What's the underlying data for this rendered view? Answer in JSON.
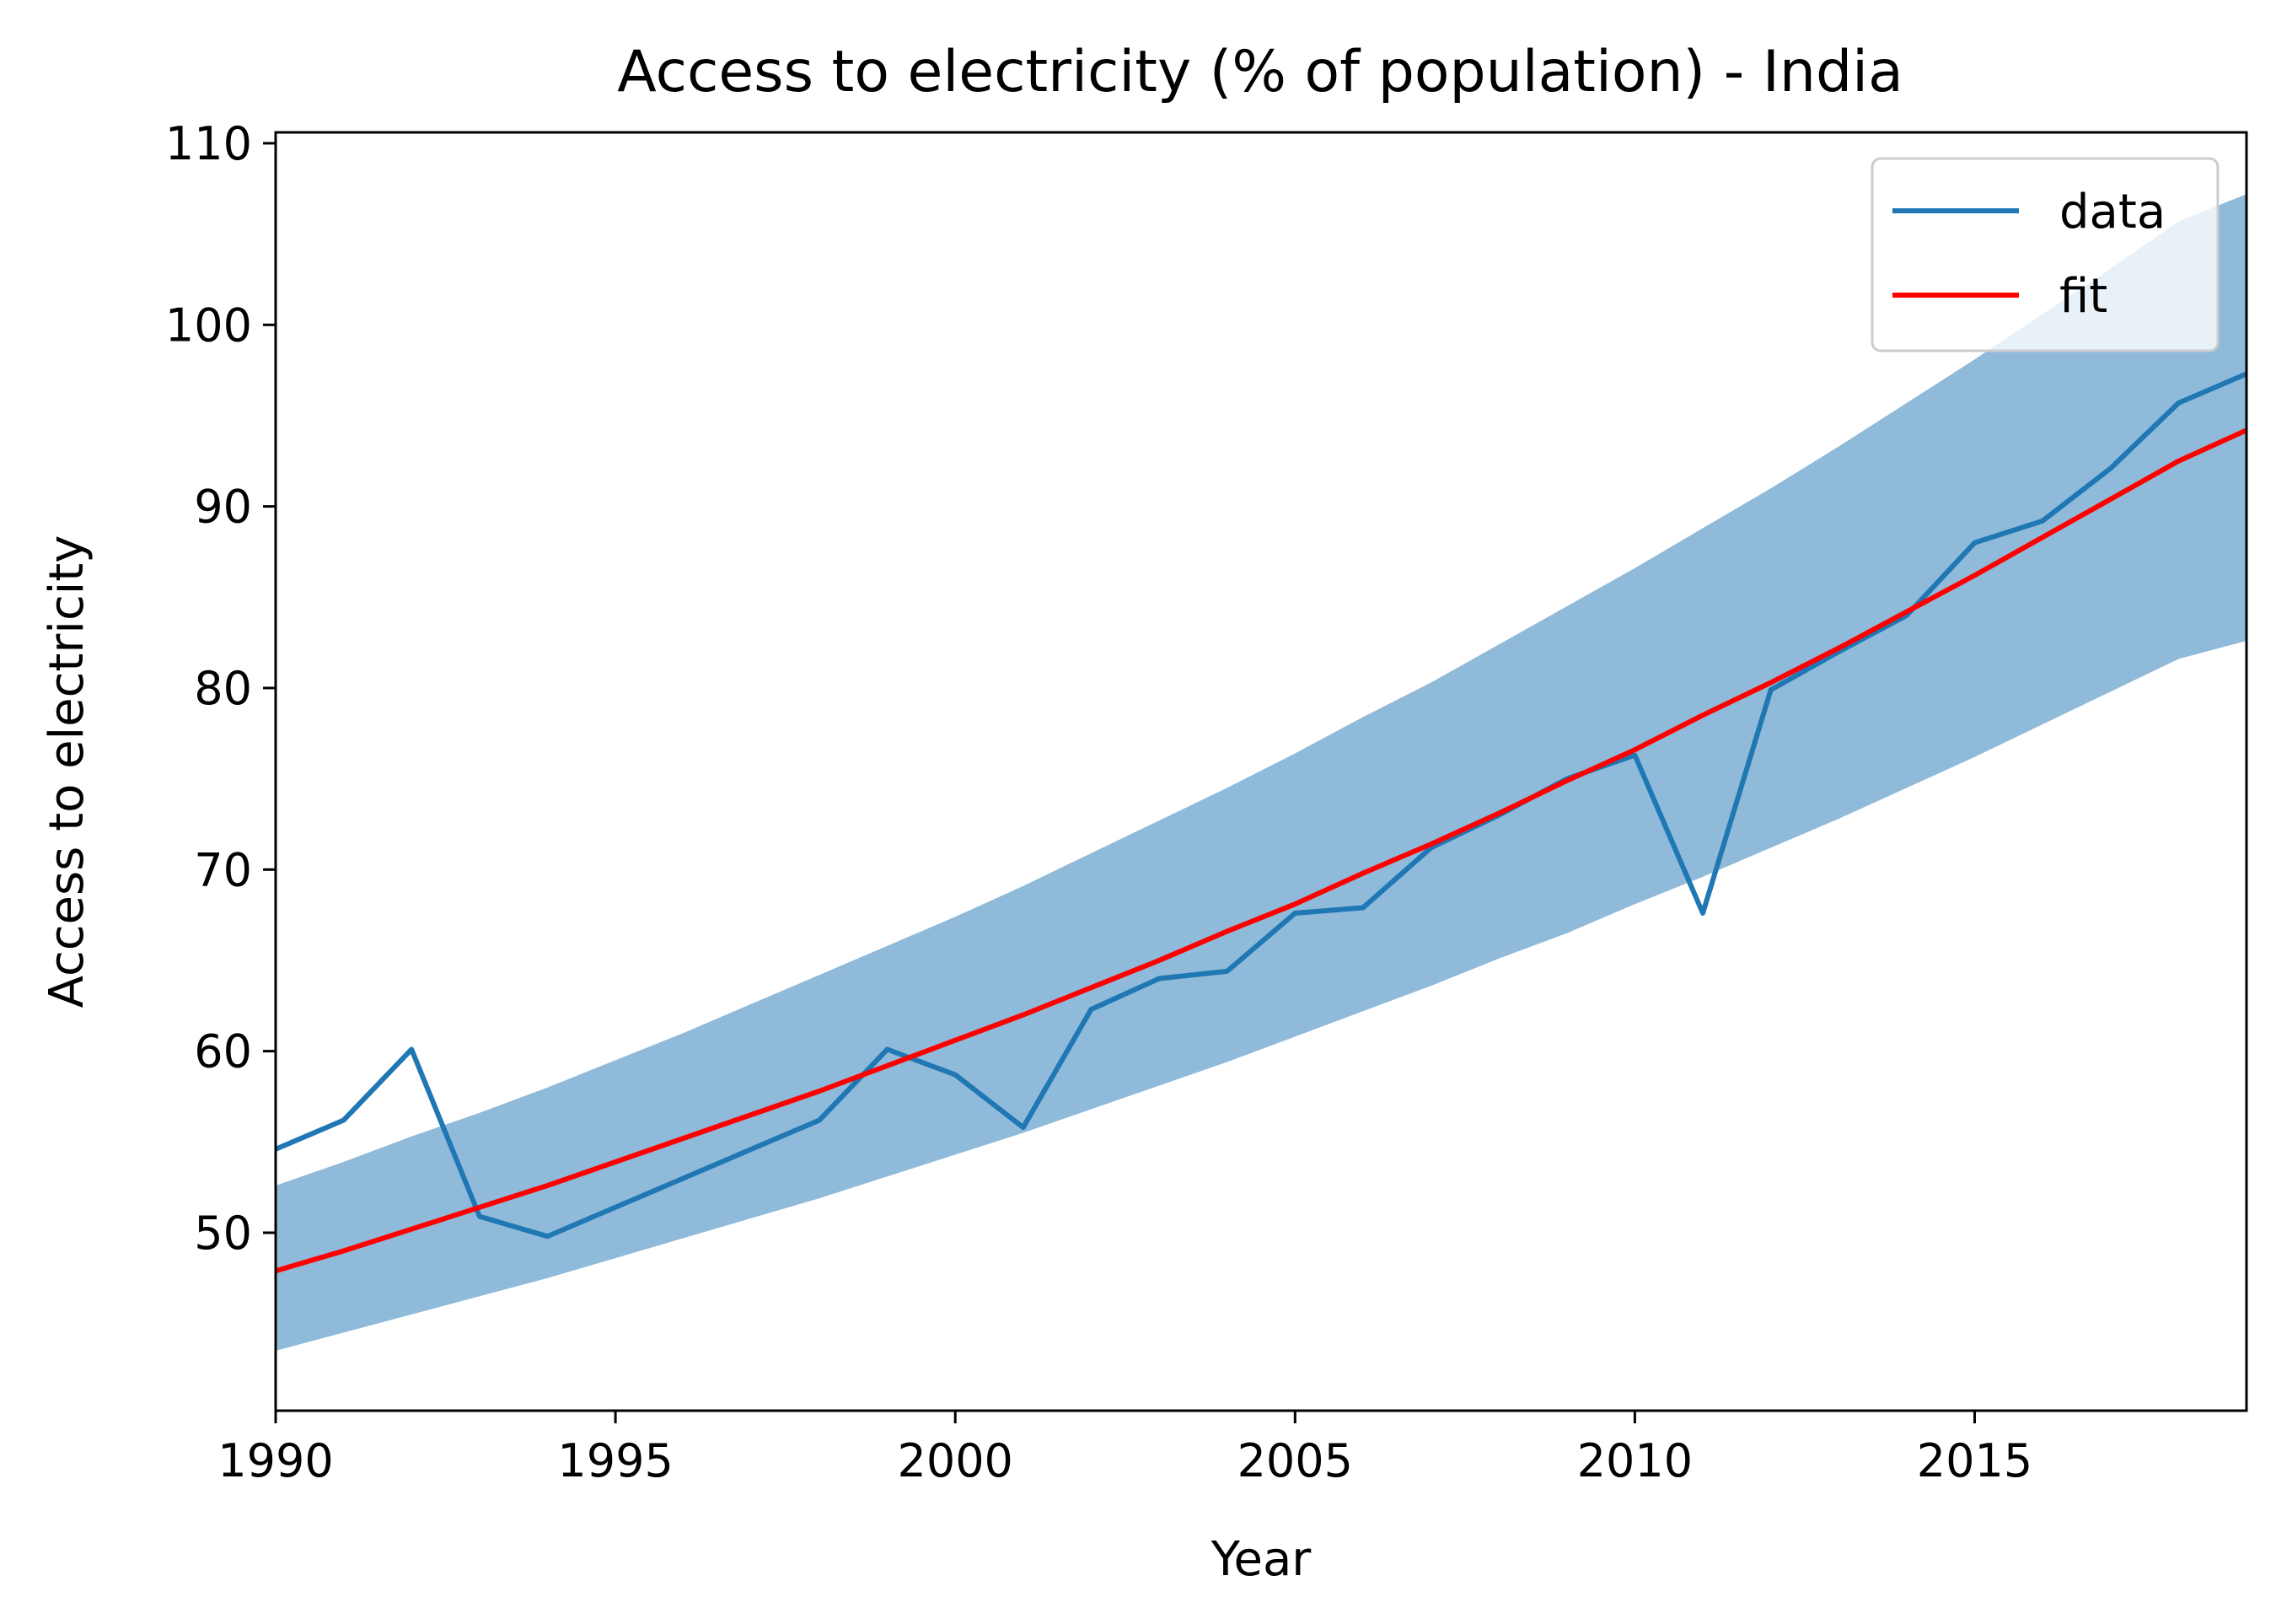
{
  "chart_data": {
    "type": "line",
    "title": "Access to electricity (% of population) - India",
    "xlabel": "Year",
    "ylabel": "Access to electricity",
    "xlim": [
      1990,
      2019
    ],
    "ylim": [
      40.2,
      110.6
    ],
    "xticks": [
      1990,
      1995,
      2000,
      2005,
      2010,
      2015
    ],
    "yticks": [
      50,
      60,
      70,
      80,
      90,
      100,
      110
    ],
    "grid": false,
    "legend_position": "top-right",
    "colors": {
      "data": "#1f77b4",
      "fit": "#ff0000",
      "band": "#8fbad9"
    },
    "series": [
      {
        "name": "data",
        "x": [
          1990,
          1991,
          1992,
          1993,
          1994,
          1995,
          1996,
          1997,
          1998,
          1999,
          2000,
          2001,
          2002,
          2003,
          2004,
          2005,
          2006,
          2007,
          2008,
          2009,
          2010,
          2011,
          2012,
          2013,
          2014,
          2015,
          2016,
          2017,
          2018,
          2019
        ],
        "y": [
          54.6,
          56.2,
          60.1,
          50.9,
          49.8,
          51.4,
          53.0,
          54.6,
          56.2,
          60.1,
          58.7,
          55.8,
          62.3,
          64.0,
          64.4,
          67.6,
          67.9,
          71.2,
          73.0,
          75.0,
          76.3,
          67.6,
          79.9,
          82.0,
          84.0,
          88.0,
          89.2,
          92.1,
          95.7,
          97.3
        ]
      },
      {
        "name": "fit",
        "x": [
          1990,
          1991,
          1992,
          1993,
          1994,
          1995,
          1996,
          1997,
          1998,
          1999,
          2000,
          2001,
          2002,
          2003,
          2004,
          2005,
          2006,
          2007,
          2008,
          2009,
          2010,
          2011,
          2012,
          2013,
          2014,
          2015,
          2016,
          2017,
          2018,
          2019
        ],
        "y": [
          47.9,
          49.0,
          50.2,
          51.4,
          52.6,
          53.9,
          55.2,
          56.5,
          57.8,
          59.2,
          60.6,
          62.0,
          63.5,
          65.0,
          66.6,
          68.1,
          69.8,
          71.4,
          73.1,
          74.9,
          76.6,
          78.5,
          80.3,
          82.2,
          84.2,
          86.2,
          88.3,
          90.4,
          92.5,
          94.2
        ]
      }
    ],
    "band": {
      "x": [
        1990,
        1991,
        1992,
        1993,
        1994,
        1995,
        1996,
        1997,
        1998,
        1999,
        2000,
        2001,
        2002,
        2003,
        2004,
        2005,
        2006,
        2007,
        2008,
        2009,
        2010,
        2011,
        2012,
        2013,
        2014,
        2015,
        2016,
        2017,
        2018,
        2019
      ],
      "lower": [
        43.5,
        44.5,
        45.5,
        46.5,
        47.5,
        48.6,
        49.7,
        50.8,
        51.9,
        53.1,
        54.3,
        55.5,
        56.8,
        58.1,
        59.4,
        60.8,
        62.2,
        63.6,
        65.1,
        66.5,
        68.1,
        69.6,
        71.2,
        72.8,
        74.5,
        76.2,
        78.0,
        79.8,
        81.6,
        82.6
      ],
      "upper": [
        52.6,
        53.9,
        55.3,
        56.6,
        58.0,
        59.5,
        61.0,
        62.6,
        64.2,
        65.8,
        67.4,
        69.1,
        70.9,
        72.7,
        74.5,
        76.4,
        78.4,
        80.3,
        82.4,
        84.5,
        86.6,
        88.8,
        91.0,
        93.3,
        95.7,
        98.1,
        100.6,
        103.1,
        105.7,
        107.2
      ]
    }
  }
}
